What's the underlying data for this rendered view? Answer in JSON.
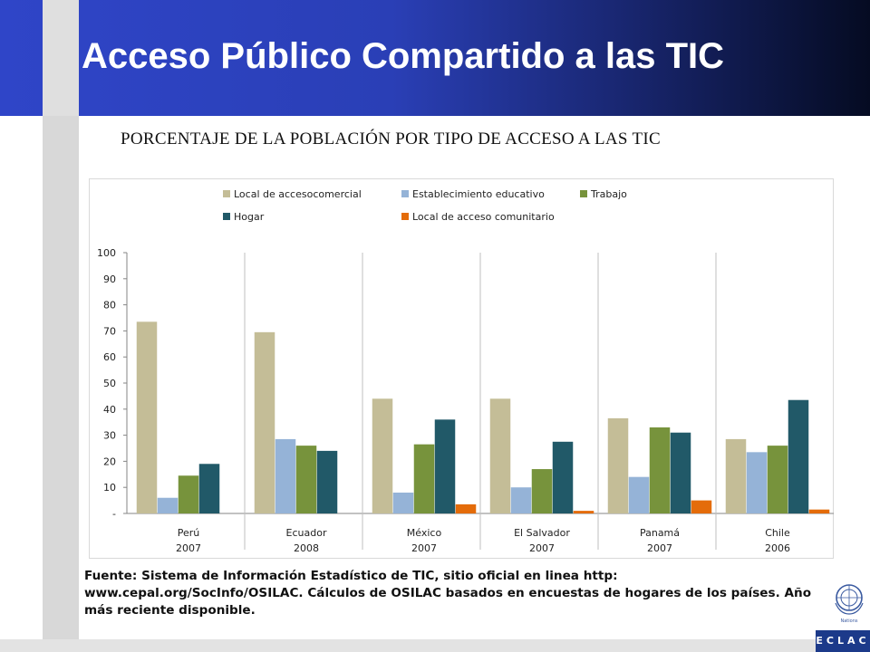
{
  "slide": {
    "title": "Acceso Público Compartido a las TIC",
    "source": "Fuente: Sistema de Información Estadístico de TIC, sitio oficial en linea http: www.cepal.org/SocInfo/OSILAC. Cálculos de OSILAC basados en encuestas de hogares de los países. Año más reciente disponible.",
    "logo_text": "ECLAC",
    "un_logo_caption": "Nations"
  },
  "chart_data": {
    "type": "bar",
    "title": "PORCENTAJE DE LA POBLACIÓN POR TIPO DE ACCESO A LAS TIC",
    "categories": [
      "Perú",
      "Ecuador",
      "México",
      "El Salvador",
      "Panamá",
      "Chile"
    ],
    "category_years": [
      "2007",
      "2008",
      "2007",
      "2007",
      "2007",
      "2006"
    ],
    "ylim": [
      0,
      100
    ],
    "yticks": [
      "-",
      "10",
      "20",
      "30",
      "40",
      "50",
      "60",
      "70",
      "80",
      "90",
      "100"
    ],
    "legend_position": "top",
    "series": [
      {
        "name": "Local de accesocomercial",
        "color": "#c4bd97",
        "values": [
          73.5,
          69.5,
          44,
          44,
          36.5,
          28.5
        ]
      },
      {
        "name": "Establecimiento educativo",
        "color": "#95b3d7",
        "values": [
          6,
          28.5,
          8,
          10,
          14,
          23.5
        ]
      },
      {
        "name": "Trabajo",
        "color": "#77933c",
        "values": [
          14.5,
          26,
          26.5,
          17,
          33,
          26
        ]
      },
      {
        "name": "Hogar",
        "color": "#215968",
        "values": [
          19,
          24,
          36,
          27.5,
          31,
          43.5
        ]
      },
      {
        "name": "Local de acceso comunitario",
        "color": "#e46c0a",
        "values": [
          0,
          0,
          3.5,
          1,
          5,
          1.5
        ]
      }
    ]
  }
}
